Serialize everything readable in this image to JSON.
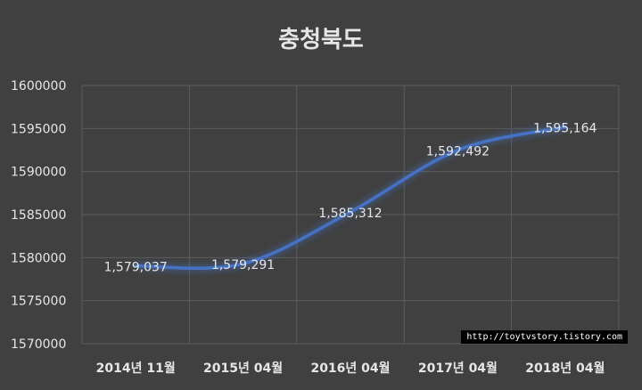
{
  "chart_data": {
    "type": "line",
    "title": "충청북도",
    "categories": [
      "2014년 11월",
      "2015년 04월",
      "2016년 04월",
      "2017년 04월",
      "2018년 04월"
    ],
    "series": [
      {
        "values": [
          1579037,
          1579291,
          1585312,
          1592492,
          1595164
        ],
        "data_labels": [
          "1,579,037",
          "1,579,291",
          "1,585,312",
          "1,592,492",
          "1,595,164"
        ]
      }
    ],
    "yticks": [
      "1600000",
      "1595000",
      "1590000",
      "1585000",
      "1580000",
      "1575000",
      "1570000"
    ],
    "ylim": [
      1570000,
      1600000
    ],
    "grid": true,
    "line_color": "#4472c4",
    "background": "#404040"
  },
  "watermark": "http://toytvstory.tistory.com"
}
